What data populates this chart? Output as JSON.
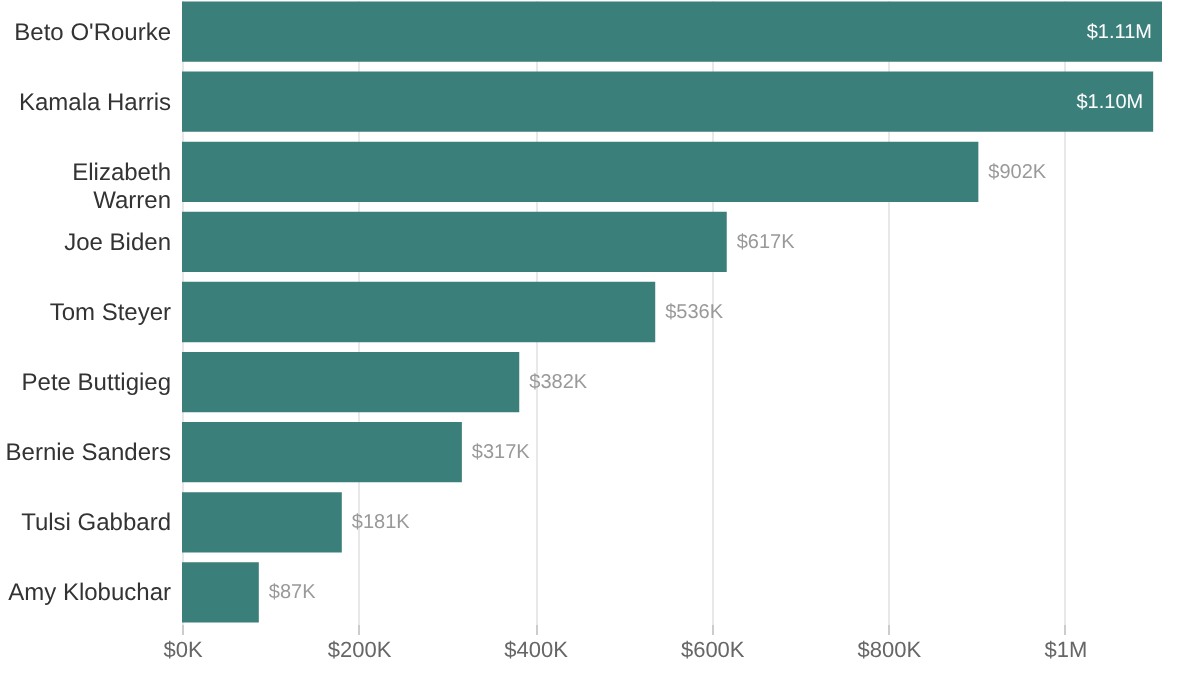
{
  "chart_data": {
    "type": "bar",
    "orientation": "horizontal",
    "categories": [
      "Beto O'Rourke",
      "Kamala Harris",
      "Elizabeth Warren",
      "Joe Biden",
      "Tom Steyer",
      "Pete Buttigieg",
      "Bernie Sanders",
      "Tulsi Gabbard",
      "Amy Klobuchar"
    ],
    "values": [
      1110000,
      1100000,
      902000,
      617000,
      536000,
      382000,
      317000,
      181000,
      87000
    ],
    "value_labels": [
      "$1.11M",
      "$1.10M",
      "$902K",
      "$617K",
      "$536K",
      "$382K",
      "$317K",
      "$181K",
      "$87K"
    ],
    "color": "#3b7f7b",
    "xlim": [
      0,
      1110000
    ],
    "xticks": [
      {
        "value": 0,
        "label": "$0K"
      },
      {
        "value": 200000,
        "label": "$200K"
      },
      {
        "value": 400000,
        "label": "$400K"
      },
      {
        "value": 600000,
        "label": "$600K"
      },
      {
        "value": 800000,
        "label": "$800K"
      },
      {
        "value": 1000000,
        "label": "$1M"
      }
    ],
    "grid": "x"
  }
}
